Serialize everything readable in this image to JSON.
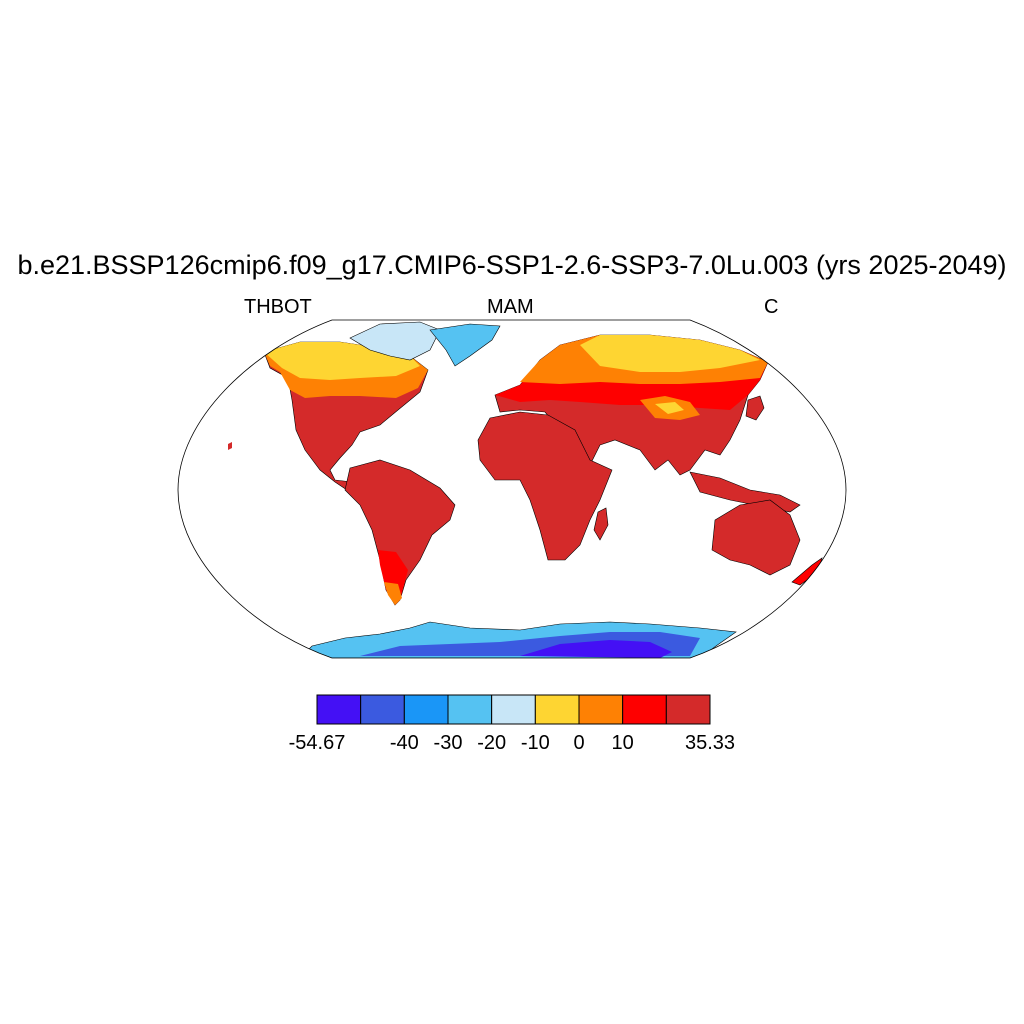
{
  "title": "b.e21.BSSP126cmip6.f09_g17.CMIP6-SSP1-2.6-SSP3-7.0Lu.003 (yrs 2025-2049)",
  "left_label": "THBOT",
  "center_label": "MAM",
  "right_label": "C",
  "colorbar": {
    "colors": [
      "#4410f5",
      "#3b5ae0",
      "#1a96f7",
      "#55c2f2",
      "#c8e6f7",
      "#fed532",
      "#fe8104",
      "#fe0000",
      "#d42a2a"
    ],
    "tick_labels": [
      "-54.67",
      "-40",
      "-30",
      "-20",
      "-10",
      "0",
      "10",
      "35.33"
    ],
    "tick_boundary_index": [
      0,
      2,
      3,
      4,
      5,
      6,
      7,
      9
    ]
  }
}
